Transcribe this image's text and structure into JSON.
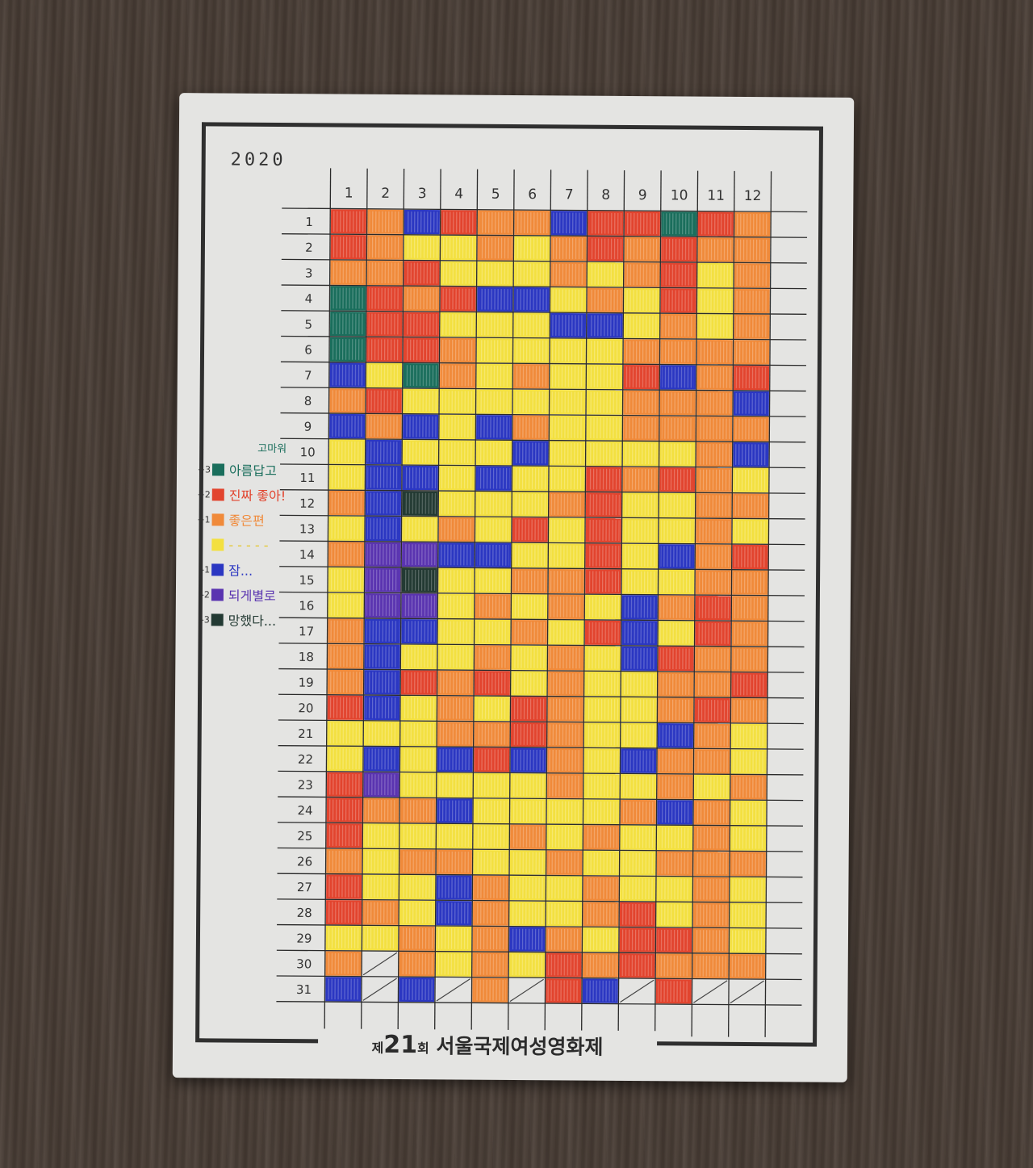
{
  "year": "2020",
  "months": [
    "1",
    "2",
    "3",
    "4",
    "5",
    "6",
    "7",
    "8",
    "9",
    "10",
    "11",
    "12"
  ],
  "days": [
    "1",
    "2",
    "3",
    "4",
    "5",
    "6",
    "7",
    "8",
    "9",
    "10",
    "11",
    "12",
    "13",
    "14",
    "15",
    "16",
    "17",
    "18",
    "19",
    "20",
    "21",
    "22",
    "23",
    "24",
    "25",
    "26",
    "27",
    "28",
    "29",
    "30",
    "31"
  ],
  "days_in_month": [
    31,
    29,
    31,
    30,
    31,
    30,
    31,
    31,
    30,
    31,
    30,
    31
  ],
  "colors": {
    "3": "#1a6e5c",
    "2": "#e2442e",
    "1": "#f08a3a",
    "0": "#f3e040",
    "-1": "#2b37c2",
    "-2": "#5a34b0",
    "-3": "#233a33"
  },
  "legend": {
    "above_top": "고마워",
    "items": [
      {
        "value": "+3",
        "level": "3",
        "text": "아름답고",
        "text_color": "#1a6e5c"
      },
      {
        "value": "+2",
        "level": "2",
        "text": "진짜 좋아!",
        "text_color": "#e2442e"
      },
      {
        "value": "+1",
        "level": "1",
        "text": "좋은편",
        "text_color": "#f08a3a"
      },
      {
        "value": "",
        "level": "0",
        "text": "- - - - -",
        "text_color": "#e3c62a"
      },
      {
        "value": "-1",
        "level": "-1",
        "text": "잠...",
        "text_color": "#2b37c2"
      },
      {
        "value": "-2",
        "level": "-2",
        "text": "되게별로",
        "text_color": "#5a34b0"
      },
      {
        "value": "-3",
        "level": "-3",
        "text": "망했다...",
        "text_color": "#233a33"
      }
    ]
  },
  "mood_grid": [
    [
      2,
      1,
      -1,
      2,
      1,
      1,
      -1,
      2,
      2,
      3,
      2,
      1
    ],
    [
      2,
      1,
      0,
      0,
      1,
      0,
      1,
      2,
      1,
      2,
      1,
      1
    ],
    [
      1,
      1,
      2,
      0,
      0,
      0,
      1,
      0,
      1,
      2,
      0,
      1
    ],
    [
      3,
      2,
      1,
      2,
      -1,
      -1,
      0,
      1,
      0,
      2,
      0,
      1
    ],
    [
      3,
      2,
      2,
      0,
      0,
      0,
      -1,
      -1,
      0,
      1,
      0,
      1
    ],
    [
      3,
      2,
      2,
      1,
      0,
      0,
      0,
      0,
      1,
      1,
      1,
      1
    ],
    [
      -1,
      0,
      3,
      1,
      0,
      1,
      0,
      0,
      2,
      -1,
      1,
      2
    ],
    [
      1,
      2,
      0,
      0,
      0,
      0,
      0,
      0,
      1,
      1,
      1,
      -1
    ],
    [
      -1,
      1,
      -1,
      0,
      -1,
      1,
      0,
      0,
      1,
      1,
      1,
      1
    ],
    [
      0,
      -1,
      0,
      0,
      0,
      -1,
      0,
      0,
      0,
      0,
      1,
      -1
    ],
    [
      0,
      -1,
      -1,
      0,
      -1,
      0,
      0,
      2,
      1,
      2,
      1,
      0
    ],
    [
      1,
      -1,
      -3,
      0,
      0,
      0,
      1,
      2,
      0,
      0,
      1,
      1
    ],
    [
      0,
      -1,
      0,
      1,
      0,
      2,
      0,
      2,
      0,
      0,
      1,
      0
    ],
    [
      1,
      -2,
      -2,
      -1,
      -1,
      0,
      0,
      2,
      0,
      -1,
      1,
      2
    ],
    [
      0,
      -2,
      -3,
      0,
      0,
      1,
      1,
      2,
      0,
      0,
      1,
      1
    ],
    [
      0,
      -2,
      -2,
      0,
      1,
      0,
      1,
      0,
      -1,
      1,
      2,
      1
    ],
    [
      1,
      -1,
      -1,
      0,
      0,
      1,
      0,
      2,
      -1,
      0,
      2,
      1
    ],
    [
      1,
      -1,
      0,
      0,
      1,
      0,
      1,
      0,
      -1,
      2,
      1,
      1
    ],
    [
      1,
      -1,
      2,
      1,
      2,
      0,
      1,
      0,
      0,
      1,
      1,
      2
    ],
    [
      2,
      -1,
      0,
      1,
      0,
      2,
      1,
      0,
      0,
      1,
      2,
      1
    ],
    [
      0,
      0,
      0,
      1,
      1,
      2,
      1,
      0,
      0,
      -1,
      1,
      0
    ],
    [
      0,
      -1,
      0,
      -1,
      2,
      -1,
      1,
      0,
      -1,
      1,
      1,
      0
    ],
    [
      2,
      -2,
      0,
      0,
      0,
      0,
      1,
      0,
      0,
      1,
      0,
      1
    ],
    [
      2,
      1,
      1,
      -1,
      0,
      0,
      0,
      0,
      1,
      -1,
      1,
      0
    ],
    [
      2,
      0,
      0,
      0,
      0,
      1,
      0,
      1,
      0,
      0,
      1,
      0
    ],
    [
      1,
      0,
      1,
      1,
      0,
      0,
      1,
      0,
      0,
      1,
      1,
      1
    ],
    [
      2,
      0,
      0,
      -1,
      1,
      0,
      0,
      1,
      0,
      0,
      1,
      0
    ],
    [
      2,
      1,
      0,
      -1,
      1,
      0,
      0,
      1,
      2,
      0,
      1,
      0
    ],
    [
      0,
      0,
      1,
      0,
      1,
      -1,
      1,
      0,
      2,
      2,
      1,
      0
    ],
    [
      1,
      null,
      1,
      0,
      1,
      0,
      2,
      1,
      2,
      1,
      1,
      1
    ],
    [
      -1,
      null,
      -1,
      null,
      1,
      null,
      2,
      -1,
      null,
      2,
      null,
      null
    ]
  ],
  "footer": {
    "pre": "제",
    "num": "21",
    "mid": "회",
    "title": "서울국제여성영화제"
  }
}
